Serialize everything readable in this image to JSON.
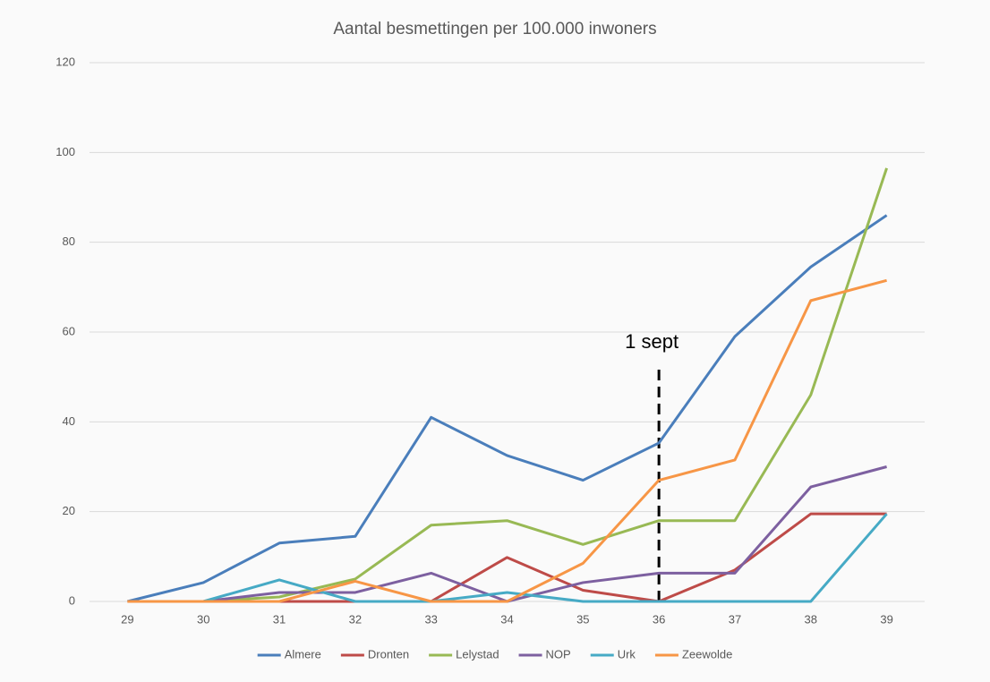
{
  "chart_data": {
    "type": "line",
    "title": "Aantal besmettingen per 100.000 inwoners",
    "categories": [
      "29",
      "30",
      "31",
      "32",
      "33",
      "34",
      "35",
      "36",
      "37",
      "38",
      "39"
    ],
    "series": [
      {
        "name": "Almere",
        "color": "#4a7ebb",
        "values": [
          0,
          4.2,
          13,
          14.5,
          41,
          32.5,
          27,
          35.3,
          59,
          74.5,
          86
        ]
      },
      {
        "name": "Dronten",
        "color": "#be4b48",
        "values": [
          0,
          0,
          0,
          0,
          0,
          9.8,
          2.5,
          0,
          7,
          19.5,
          19.5
        ]
      },
      {
        "name": "Lelystad",
        "color": "#98b954",
        "values": [
          null,
          0,
          1,
          5,
          17,
          18,
          12.7,
          18,
          18,
          46,
          96.5
        ]
      },
      {
        "name": "NOP",
        "color": "#7d60a0",
        "values": [
          null,
          0,
          2,
          2,
          6.3,
          0,
          4.2,
          6.3,
          6.3,
          25.5,
          30
        ]
      },
      {
        "name": "Urk",
        "color": "#46aac5",
        "values": [
          null,
          0,
          4.8,
          0,
          0,
          2,
          0,
          0,
          0,
          0,
          19.5
        ]
      },
      {
        "name": "Zeewolde",
        "color": "#f79646",
        "values": [
          0,
          0,
          0,
          4.5,
          0,
          0,
          8.5,
          27,
          31.5,
          67,
          71.5
        ]
      }
    ],
    "ylim": [
      0,
      120
    ],
    "yticks": [
      0,
      20,
      40,
      60,
      80,
      100,
      120
    ],
    "grid": true,
    "legend": "bottom",
    "annotation": {
      "text": "1 sept",
      "category": "36",
      "from": 0,
      "to": 52
    }
  }
}
